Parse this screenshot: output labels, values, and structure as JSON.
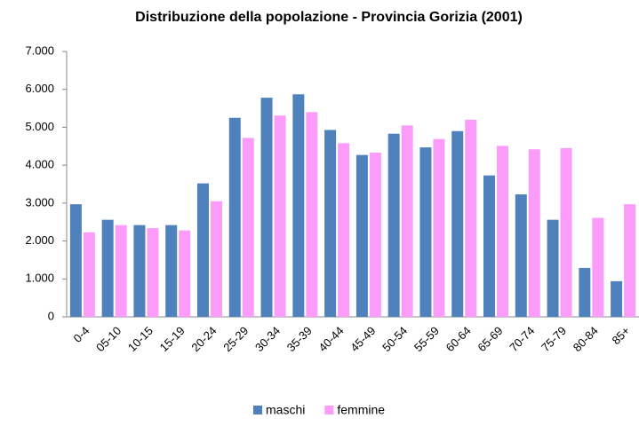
{
  "chart_data": {
    "type": "bar",
    "title": "Distribuzione della popolazione - Provincia Gorizia  (2001)",
    "categories": [
      "0-4",
      "05-10",
      "10-15",
      "15-19",
      "20-24",
      "25-29",
      "30-34",
      "35-39",
      "40-44",
      "45-49",
      "50-54",
      "55-59",
      "60-64",
      "65-69",
      "70-74",
      "75-79",
      "80-84",
      "85+"
    ],
    "series": [
      {
        "name": "maschi",
        "color": "#4f81bd",
        "values": [
          2970,
          2560,
          2420,
          2420,
          3520,
          5250,
          5780,
          5870,
          4930,
          4270,
          4830,
          4470,
          4900,
          3730,
          3230,
          2560,
          1290,
          940
        ]
      },
      {
        "name": "femmine",
        "color": "#fb9cfb",
        "values": [
          2230,
          2420,
          2340,
          2280,
          3050,
          4720,
          5310,
          5400,
          4580,
          4330,
          5050,
          4690,
          5200,
          4510,
          4420,
          4450,
          2610,
          2970
        ]
      }
    ],
    "ylim": [
      0,
      7000
    ],
    "yticks": [
      0,
      {
        "value": 1000,
        "label": "1.000"
      },
      {
        "value": 2000,
        "label": "2.000"
      },
      {
        "value": 3000,
        "label": "3.000"
      },
      {
        "value": 4000,
        "label": "4.000"
      },
      {
        "value": 5000,
        "label": "5.000"
      },
      {
        "value": 6000,
        "label": "6.000"
      },
      {
        "value": 7000,
        "label": "7.000"
      }
    ],
    "grid": false,
    "legend": "bottom"
  }
}
